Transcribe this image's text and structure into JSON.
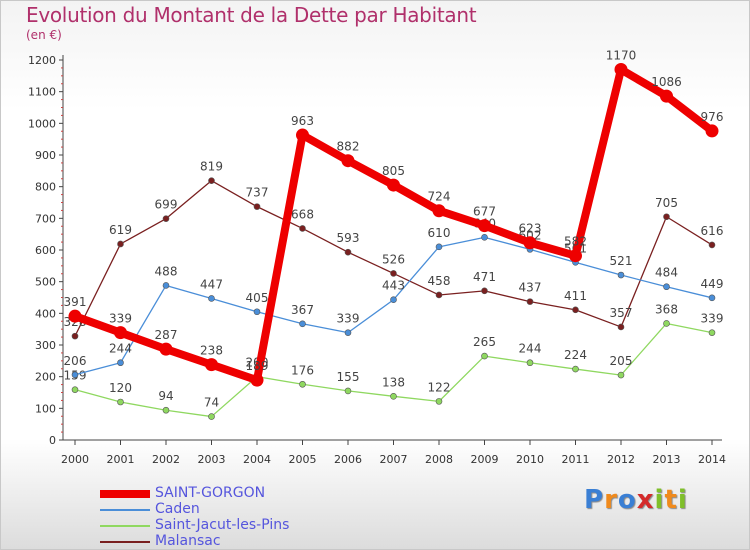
{
  "header": {
    "title": "Evolution du Montant de la Dette par Habitant",
    "unit": "(en €)"
  },
  "brand": {
    "letters": [
      "P",
      "r",
      "o",
      "x",
      "i",
      "t",
      "i"
    ],
    "colors": [
      "#3a7fd4",
      "#f08a1c",
      "#3a7fd4",
      "#d42a2a",
      "#7fbf2a",
      "#f08a1c",
      "#7fbf2a"
    ]
  },
  "chart_data": {
    "type": "line",
    "title": "Evolution du Montant de la Dette par Habitant",
    "xlabel": "",
    "ylabel": "(en €)",
    "x": [
      "2000",
      "2001",
      "2002",
      "2003",
      "2004",
      "2005",
      "2006",
      "2007",
      "2008",
      "2009",
      "2010",
      "2011",
      "2012",
      "2013",
      "2014"
    ],
    "ylim": [
      0,
      1200
    ],
    "yticks": [
      0,
      100,
      200,
      300,
      400,
      500,
      600,
      700,
      800,
      900,
      1000,
      1100,
      1200
    ],
    "grid": false,
    "legend_position": "bottom-left",
    "series": [
      {
        "name": "SAINT-GORGON",
        "color": "#ee0000",
        "values": [
          391,
          339,
          287,
          238,
          189,
          963,
          882,
          805,
          724,
          677,
          623,
          582,
          1170,
          1086,
          976
        ]
      },
      {
        "name": "Caden",
        "color": "#4a8ed8",
        "values": [
          206,
          244,
          488,
          447,
          405,
          367,
          339,
          443,
          610,
          640,
          602,
          561,
          521,
          484,
          449
        ]
      },
      {
        "name": "Saint-Jacut-les-Pins",
        "color": "#8fd860",
        "values": [
          159,
          120,
          94,
          74,
          200,
          176,
          155,
          138,
          122,
          265,
          244,
          224,
          205,
          368,
          339
        ]
      },
      {
        "name": "Malansac",
        "color": "#7a2020",
        "values": [
          328,
          619,
          699,
          819,
          737,
          668,
          593,
          526,
          458,
          471,
          437,
          411,
          357,
          705,
          616
        ]
      }
    ]
  }
}
